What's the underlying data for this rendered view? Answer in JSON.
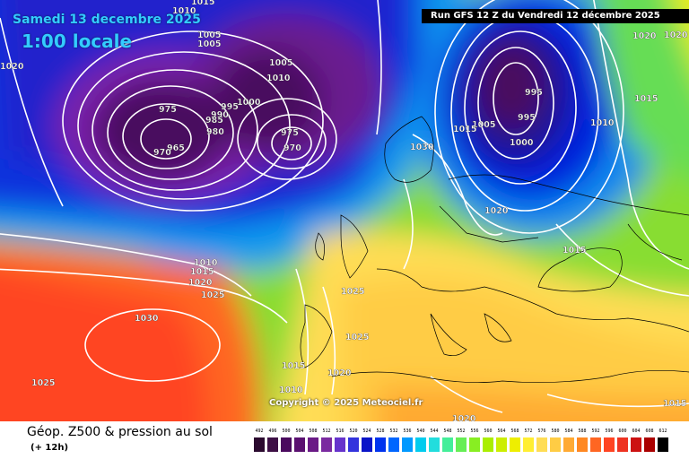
{
  "header": {
    "date_title": "Samedi 13 decembre 2025",
    "local_time": "1:00 locale",
    "run_info": "Run GFS 12 Z du Vendredi 12 décembre 2025"
  },
  "map": {
    "copyright": "Copyright © 2025 Meteociel.fr",
    "isobar_labels": [
      "1015",
      "1010",
      "1005",
      "1005",
      "1005",
      "1010",
      "1020",
      "975",
      "965",
      "970",
      "985",
      "990",
      "980",
      "995",
      "1000",
      "975",
      "970",
      "1030",
      "1005",
      "1015",
      "995",
      "995",
      "1000",
      "1020",
      "1010",
      "1015",
      "1020",
      "1015",
      "1010",
      "1015",
      "1020",
      "1025",
      "1030",
      "1025",
      "1025",
      "1025",
      "1015",
      "1020",
      "1010",
      "1020",
      "1015",
      "1020"
    ],
    "line_color": "#ffffff"
  },
  "footer": {
    "product_title": "Géop. Z500 & pression au sol",
    "forecast_step": "(+ 12h)"
  },
  "legend": {
    "values": [
      "492",
      "496",
      "500",
      "504",
      "508",
      "512",
      "516",
      "520",
      "524",
      "528",
      "532",
      "536",
      "540",
      "544",
      "548",
      "552",
      "556",
      "560",
      "564",
      "568",
      "572",
      "576",
      "580",
      "584",
      "588",
      "592",
      "596",
      "600",
      "604",
      "608",
      "612"
    ],
    "colors": [
      "#2b0a2f",
      "#3d0f45",
      "#4a0a5e",
      "#5a1070",
      "#6a1a86",
      "#7a2aa0",
      "#6633cc",
      "#3333dd",
      "#0a14c8",
      "#0033ee",
      "#0066ff",
      "#0099ff",
      "#00ccee",
      "#22dddd",
      "#44ee99",
      "#66ee55",
      "#88ee22",
      "#aaee00",
      "#ccee00",
      "#eeee00",
      "#ffee33",
      "#ffdd55",
      "#ffcc44",
      "#ffaa33",
      "#ff8822",
      "#ff6622",
      "#ff4422",
      "#ee3322",
      "#cc1111",
      "#aa0000",
      "#000000"
    ]
  }
}
